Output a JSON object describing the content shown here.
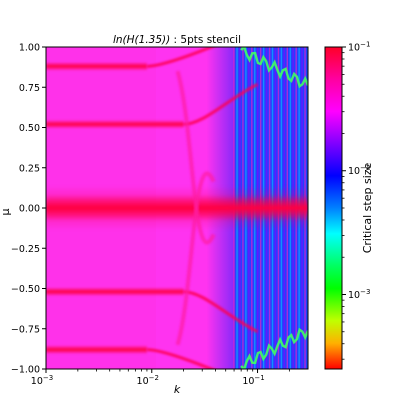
{
  "chart_data": {
    "type": "heatmap",
    "title_func": "ln(H(1.35))",
    "title_rest": " : 5pts stencil",
    "xlabel": "k",
    "ylabel": "μ",
    "x_scale": "log",
    "xlim": [
      0.001,
      0.3
    ],
    "ylim": [
      -1.0,
      1.0
    ],
    "x_ticks": [
      0.001,
      0.01,
      0.1
    ],
    "x_tick_labels": [
      {
        "base": "10",
        "exp": "−3"
      },
      {
        "base": "10",
        "exp": "−2"
      },
      {
        "base": "10",
        "exp": "−1"
      }
    ],
    "y_ticks": [
      1.0,
      0.75,
      0.5,
      0.25,
      0.0,
      -0.25,
      -0.5,
      -0.75,
      -1.0
    ],
    "y_tick_labels": [
      "1.00",
      "0.75",
      "0.50",
      "0.25",
      "0.00",
      "−0.25",
      "−0.50",
      "−0.75",
      "−1.00"
    ],
    "colorbar": {
      "label": "Critical step size",
      "scale": "log",
      "range": [
        0.00025,
        0.1
      ],
      "colormap": "gist_rainbow",
      "colors_top_to_bottom": [
        "#ff0028",
        "#ff00ff",
        "#8000ff",
        "#0000ff",
        "#00ffff",
        "#00ff00",
        "#ffff00",
        "#ff0000"
      ],
      "ticks": [
        0.1,
        0.01,
        0.001
      ],
      "tick_labels": [
        {
          "base": "10",
          "exp": "−1"
        },
        {
          "base": "10",
          "exp": "−2"
        },
        {
          "base": "10",
          "exp": "−3"
        }
      ]
    },
    "features": {
      "background_value": 0.06,
      "red_bands_mu": [
        0.0,
        0.52,
        -0.52,
        0.88,
        -0.88
      ],
      "transition_k": 0.02,
      "blue_region_k_min": 0.06,
      "green_contour_k_range": [
        0.07,
        0.3
      ]
    }
  }
}
